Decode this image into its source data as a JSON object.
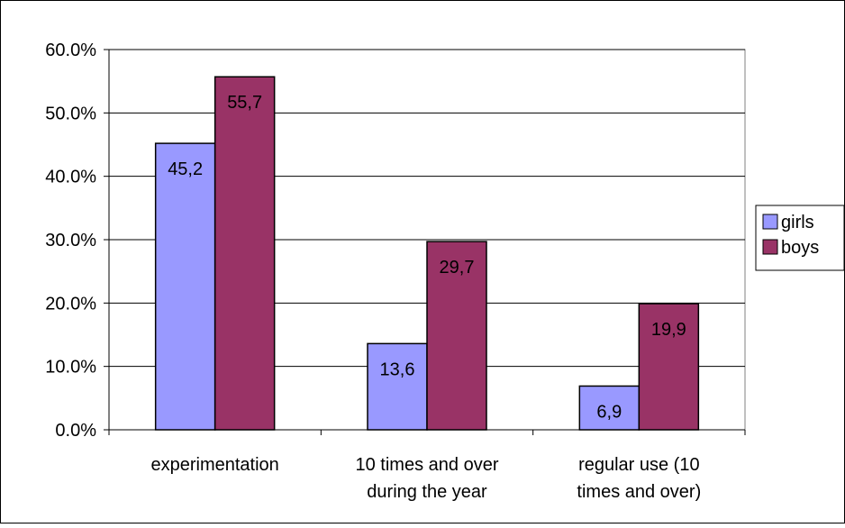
{
  "chart_data": {
    "type": "bar",
    "categories": [
      [
        "experimentation"
      ],
      [
        "10 times and over",
        "during the year"
      ],
      [
        "regular use (10",
        "times and over)"
      ]
    ],
    "series": [
      {
        "name": "girls",
        "values": [
          45.2,
          13.6,
          6.9
        ],
        "labels": [
          "45,2",
          "13,6",
          "6,9"
        ],
        "color": "#9999ff"
      },
      {
        "name": "boys",
        "values": [
          55.7,
          29.7,
          19.9
        ],
        "labels": [
          "55,7",
          "29,7",
          "19,9"
        ],
        "color": "#993366"
      }
    ],
    "ylim": [
      0,
      60
    ],
    "yticks": [
      0,
      10,
      20,
      30,
      40,
      50,
      60
    ],
    "ytick_labels": [
      "0.0%",
      "10.0%",
      "20.0%",
      "30.0%",
      "40.0%",
      "50.0%",
      "60.0%"
    ],
    "grid": true,
    "legend_position": "right",
    "title": "",
    "xlabel": "",
    "ylabel": ""
  }
}
